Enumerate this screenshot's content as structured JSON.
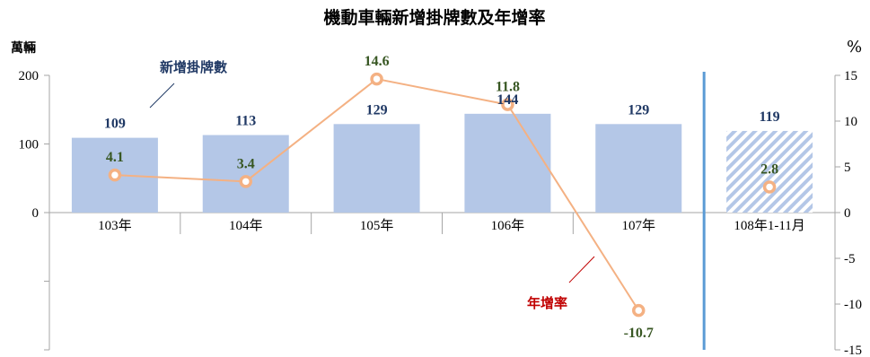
{
  "chart_data": {
    "type": "bar+line",
    "title": "機動車輛新增掛牌數及年增率",
    "left_axis_unit": "萬輛",
    "right_axis_unit": "%",
    "categories": [
      "103年",
      "104年",
      "105年",
      "106年",
      "107年",
      "108年1-11月"
    ],
    "left_ylim": [
      -200,
      200
    ],
    "left_ticks": [
      "200",
      "100",
      "0"
    ],
    "right_ylim": [
      -15,
      15
    ],
    "right_ticks": [
      "15",
      "10",
      "5",
      "0",
      "-5",
      "-10",
      "-15"
    ],
    "series": [
      {
        "name": "新增掛牌數",
        "type": "bar",
        "axis": "left",
        "values": [
          109,
          113,
          129,
          144,
          129,
          119
        ],
        "labels": [
          "109",
          "113",
          "129",
          "144",
          "129",
          "119"
        ],
        "color": "#b4c7e7",
        "label_color": "#1f3864",
        "hatched_last": true
      },
      {
        "name": "年增率",
        "type": "line",
        "axis": "right",
        "values": [
          4.1,
          3.4,
          14.6,
          11.8,
          -10.7,
          2.8
        ],
        "labels": [
          "4.1",
          "3.4",
          "14.6",
          "11.8",
          "-10.7",
          "2.8"
        ],
        "color": "#f4b183",
        "label_color": "#385723",
        "connect_last": false
      }
    ],
    "grid": false,
    "annotations": {
      "bar_note": "新增掛牌數",
      "line_note": "年增率"
    },
    "divider_color": "#5b9bd5"
  }
}
